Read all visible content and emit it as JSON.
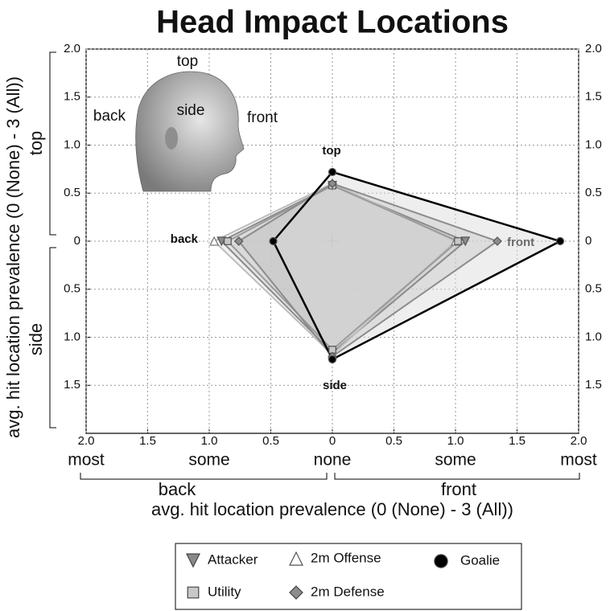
{
  "chart_data": {
    "type": "radar",
    "title": "Head Impact Locations",
    "xlabel": "avg. hit location prevalence (0 (None) - 3 (All))",
    "ylabel": "avg. hit location prevalence (0 (None) - 3 (All))",
    "categories": [
      "top",
      "front",
      "side",
      "back"
    ],
    "head_labels": [
      "top",
      "back",
      "side",
      "front"
    ],
    "scale_labels": [
      "most",
      "some",
      "none",
      "some",
      "most"
    ],
    "x_groups": [
      "back",
      "front"
    ],
    "y_groups": [
      "top",
      "side"
    ],
    "xlim": [
      -2,
      2
    ],
    "xticks": [
      {
        "value": -2,
        "label": "2.0"
      },
      {
        "value": -1.5,
        "label": "1.5"
      },
      {
        "value": -1,
        "label": "1.0"
      },
      {
        "value": -0.5,
        "label": "0.5"
      },
      0,
      0.5,
      {
        "value": 1,
        "label": "1.0"
      },
      1.5,
      {
        "value": 2,
        "label": "2.0"
      }
    ],
    "ylim": [
      -2,
      2
    ],
    "yticks": [
      {
        "value": 2,
        "label": "2.0"
      },
      1.5,
      {
        "value": 1,
        "label": "1.0"
      },
      0.5,
      0,
      {
        "value": -0.5,
        "label": "0.5"
      },
      {
        "value": -1,
        "label": "1.0"
      },
      {
        "value": -1.5,
        "label": "1.5"
      }
    ],
    "grid": true,
    "series": [
      {
        "name": "Attacker",
        "color": "#8a8a8a",
        "fill": "#c8c8c8",
        "marker": "triangle-down",
        "marker_fill": "#8a8a8a",
        "values": [
          0.58,
          1.08,
          1.16,
          0.9
        ]
      },
      {
        "name": "2m Offense",
        "color": "#bdbdbd",
        "fill": "#e0e0e0",
        "marker": "triangle",
        "marker_fill": "#ffffff",
        "values": [
          0.6,
          1.0,
          1.18,
          0.96
        ]
      },
      {
        "name": "Goalie",
        "color": "#000000",
        "fill": "#d9d9d9",
        "marker": "circle",
        "marker_fill": "#000000",
        "values": [
          0.72,
          1.85,
          1.23,
          0.48
        ]
      },
      {
        "name": "Utility",
        "color": "#9a9a9a",
        "fill": "#cfcfcf",
        "marker": "square",
        "marker_fill": "#c8c8c8",
        "values": [
          0.58,
          1.02,
          1.13,
          0.85
        ]
      },
      {
        "name": "2m Defense",
        "color": "#8c8c8c",
        "fill": "#bdbdbd",
        "marker": "diamond",
        "marker_fill": "#8c8c8c",
        "values": [
          0.6,
          1.34,
          1.2,
          0.76
        ]
      }
    ]
  }
}
